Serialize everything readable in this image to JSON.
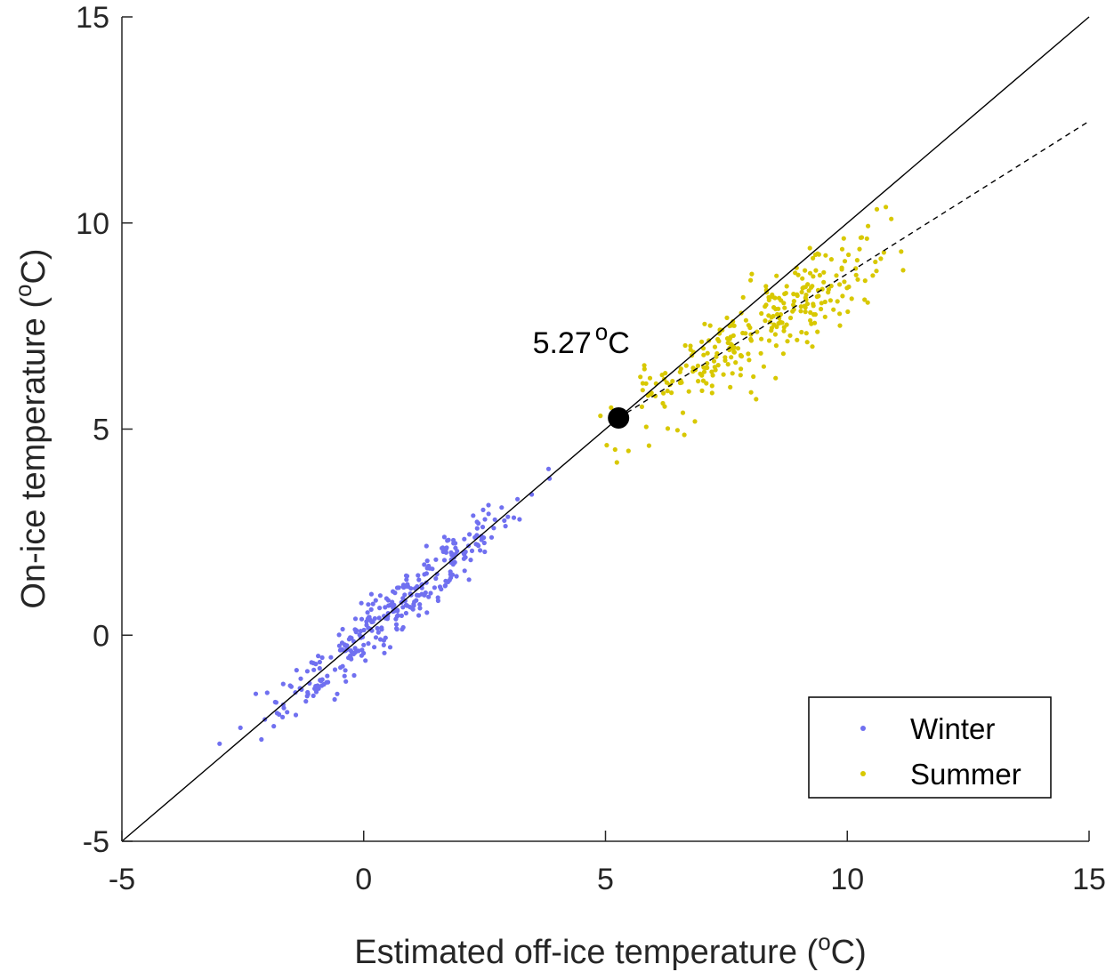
{
  "chart_data": {
    "type": "scatter",
    "xlabel": "Estimated off-ice temperature (",
    "xlabel_unit_sup": "o",
    "xlabel_unit": "C)",
    "ylabel": "On-ice temperature (",
    "ylabel_unit_sup": "o",
    "ylabel_unit": "C)",
    "xlim": [
      -5,
      15
    ],
    "ylim": [
      -5,
      15
    ],
    "xticks": [
      -5,
      0,
      5,
      10,
      15
    ],
    "yticks": [
      -5,
      0,
      5,
      10,
      15
    ],
    "xtick_labels": [
      "-5",
      "0",
      "5",
      "10",
      "15"
    ],
    "ytick_labels": [
      "-5",
      "0",
      "5",
      "10",
      "15"
    ],
    "grid": false,
    "legend_position": "bottom-right",
    "series": [
      {
        "name": "Winter",
        "color": "#7070f0",
        "trend": {
          "slope": 1.0,
          "intercept": 0.0
        },
        "x_range": [
          -3.5,
          4.8
        ],
        "n_points": 320,
        "noise_sd": 0.38,
        "seed": 11
      },
      {
        "name": "Summer",
        "color": "#d8c800",
        "trend": {
          "slope": 0.74,
          "intercept": 1.37
        },
        "x_range": [
          4.1,
          12.4
        ],
        "n_points": 300,
        "noise_sd": 0.55,
        "seed": 29
      }
    ],
    "lines": [
      {
        "name": "1:1 line",
        "style": "solid",
        "color": "#000000",
        "x": [
          -5,
          15
        ],
        "y": [
          -5,
          15
        ]
      },
      {
        "name": "summer fit",
        "style": "dashed",
        "color": "#000000",
        "x": [
          5.27,
          15
        ],
        "y": [
          5.27,
          12.47
        ]
      }
    ],
    "breakpoint": {
      "x": 5.27,
      "y": 5.27,
      "label_value": "5.27",
      "label_sup": "o",
      "label_unit": "C"
    }
  }
}
